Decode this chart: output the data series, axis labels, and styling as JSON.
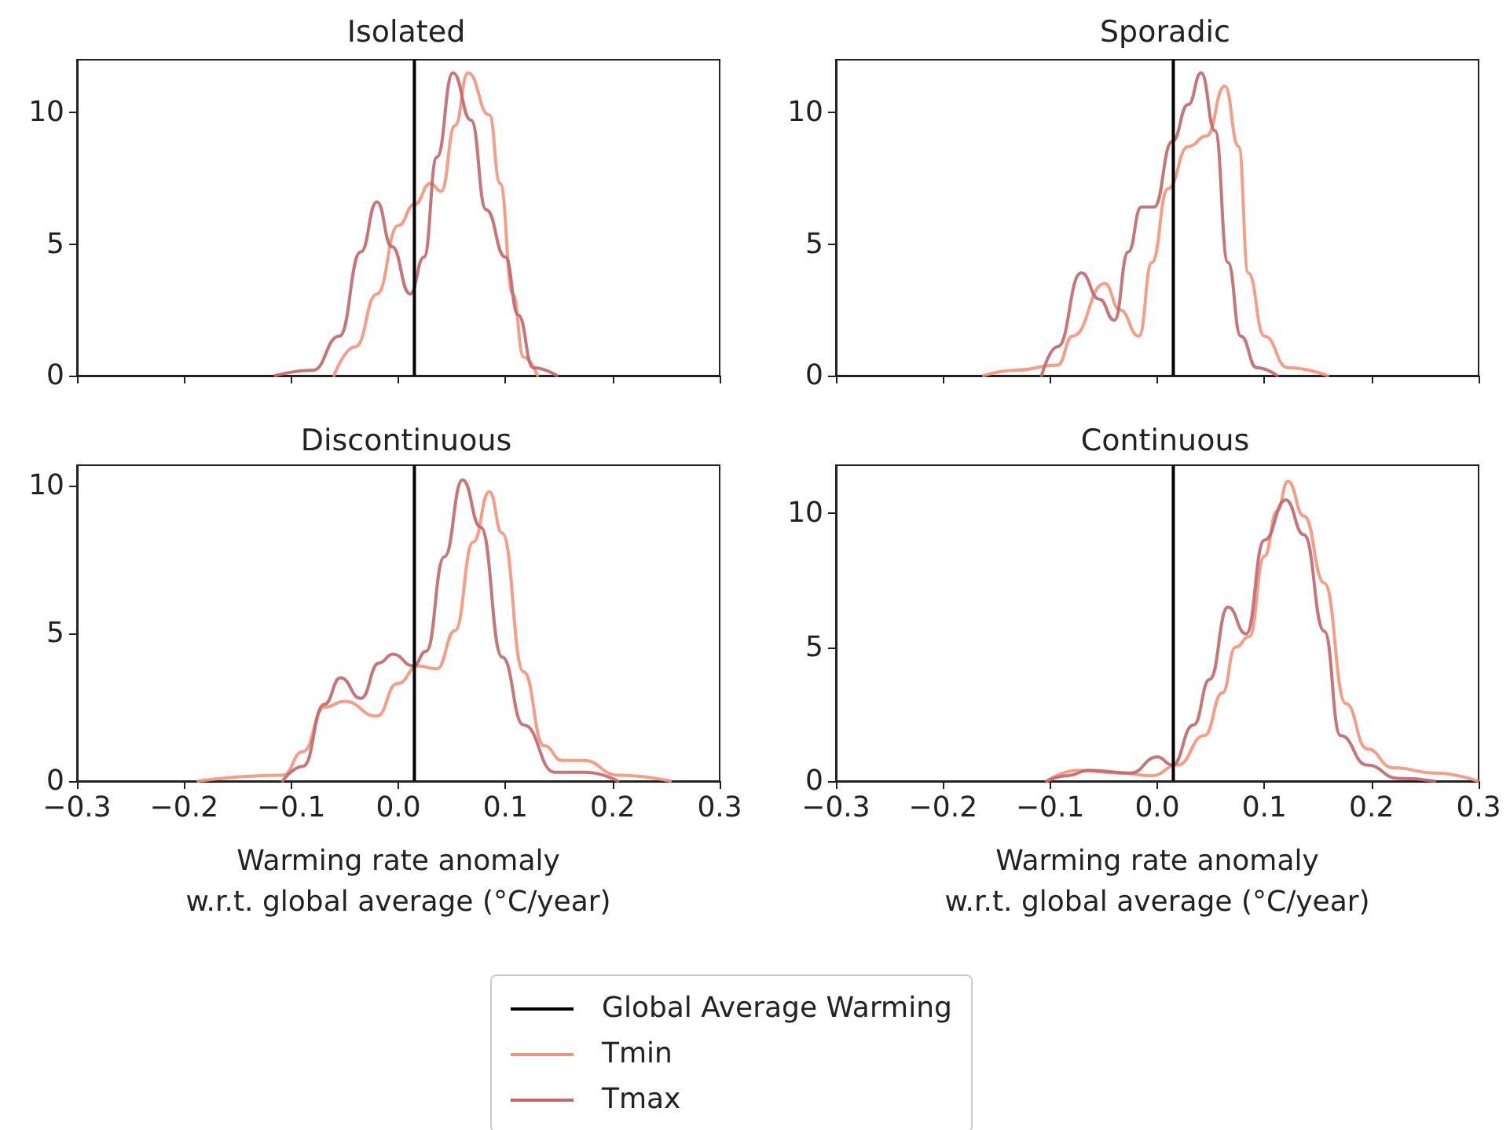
{
  "chart_data": [
    {
      "type": "line",
      "title": "Isolated",
      "xlim": [
        -0.3,
        0.3
      ],
      "ylim": [
        0,
        12
      ],
      "xticks": [
        -0.3,
        -0.2,
        -0.1,
        0,
        0.1,
        0.2,
        0.3
      ],
      "yticks": [
        0,
        5,
        10
      ],
      "tick_labels": "y",
      "grid": false,
      "legend": "bottom",
      "ref_lines": [
        {
          "axis": "x",
          "value": 0.015,
          "label": "Global Average Warming",
          "color": "#000000"
        }
      ],
      "series": [
        {
          "name": "Tmin",
          "color": "#f4937a",
          "x": [
            -0.06,
            -0.04,
            -0.02,
            0,
            0.015,
            0.03,
            0.04,
            0.053,
            0.065,
            0.085,
            0.095,
            0.107,
            0.117,
            0.13
          ],
          "values": [
            0,
            1.1,
            3.1,
            5.7,
            6.5,
            7.3,
            7.0,
            9.5,
            11.5,
            9.9,
            7.3,
            3.1,
            0.7,
            0
          ]
        },
        {
          "name": "Tmax",
          "color": "#c0676b",
          "x": [
            -0.115,
            -0.08,
            -0.055,
            -0.035,
            -0.02,
            -0.006,
            0.011,
            0.024,
            0.036,
            0.051,
            0.068,
            0.082,
            0.1,
            0.112,
            0.126,
            0.148
          ],
          "values": [
            0,
            0.2,
            1.5,
            4.7,
            6.6,
            4.9,
            3.1,
            4.5,
            8.3,
            11.5,
            9.7,
            6.3,
            4.5,
            2.3,
            0.3,
            0
          ]
        }
      ]
    },
    {
      "type": "line",
      "title": "Sporadic",
      "xlim": [
        -0.3,
        0.3
      ],
      "ylim": [
        0,
        12
      ],
      "xticks": [
        -0.3,
        -0.2,
        -0.1,
        0,
        0.1,
        0.2,
        0.3
      ],
      "yticks": [
        0,
        5,
        10
      ],
      "tick_labels": "y",
      "grid": false,
      "ref_lines": [
        {
          "axis": "x",
          "value": 0.015,
          "color": "#000000"
        }
      ],
      "series": [
        {
          "color": "#f4937a",
          "x": [
            -0.162,
            -0.133,
            -0.093,
            -0.079,
            -0.049,
            -0.035,
            -0.017,
            -0.005,
            0.01,
            0.029,
            0.046,
            0.063,
            0.076,
            0.085,
            0.1,
            0.122,
            0.159
          ],
          "values": [
            0,
            0.2,
            0.4,
            1.5,
            3.5,
            2.5,
            1.5,
            4.3,
            7.1,
            8.7,
            9.1,
            11.0,
            8.7,
            3.9,
            1.5,
            0.3,
            0
          ]
        },
        {
          "color": "#c0676b",
          "x": [
            -0.108,
            -0.093,
            -0.071,
            -0.054,
            -0.04,
            -0.027,
            -0.015,
            -0.003,
            0.014,
            0.029,
            0.041,
            0.054,
            0.066,
            0.078,
            0.093,
            0.112
          ],
          "values": [
            0,
            1.1,
            3.9,
            2.9,
            2.1,
            4.7,
            6.4,
            6.4,
            8.9,
            10.3,
            11.5,
            9.3,
            4.3,
            1.5,
            0.3,
            0
          ]
        }
      ]
    },
    {
      "type": "line",
      "title": "Discontinuous",
      "xlabel": "Warming rate anomaly\nw.r.t. global average (°C/year)",
      "xlim": [
        -0.3,
        0.3
      ],
      "ylim": [
        0,
        10.7
      ],
      "xticks": [
        {
          "value": -0.3,
          "label": "−0.3"
        },
        {
          "value": -0.2,
          "label": "−0.2"
        },
        {
          "value": -0.1,
          "label": "−0.1"
        },
        {
          "value": 0,
          "label": "0.0"
        },
        {
          "value": 0.1,
          "label": "0.1"
        },
        {
          "value": 0.2,
          "label": "0.2"
        },
        {
          "value": 0.3,
          "label": "0.3"
        }
      ],
      "yticks": [
        0,
        5,
        10
      ],
      "grid": false,
      "ref_lines": [
        {
          "axis": "x",
          "value": 0.015,
          "color": "#000000"
        }
      ],
      "series": [
        {
          "color": "#f4937a",
          "x": [
            -0.187,
            -0.108,
            -0.089,
            -0.069,
            -0.05,
            -0.02,
            -0.001,
            0.019,
            0.036,
            0.053,
            0.07,
            0.085,
            0.097,
            0.117,
            0.136,
            0.153,
            0.173,
            0.205,
            0.254
          ],
          "values": [
            0,
            0.2,
            1.0,
            2.5,
            2.7,
            2.2,
            3.3,
            3.9,
            3.8,
            5.1,
            8.1,
            9.8,
            8.4,
            3.7,
            1.2,
            0.7,
            0.7,
            0.2,
            0
          ]
        },
        {
          "color": "#c0676b",
          "x": [
            -0.108,
            -0.089,
            -0.069,
            -0.054,
            -0.035,
            -0.018,
            -0.005,
            0.014,
            0.026,
            0.043,
            0.06,
            0.077,
            0.097,
            0.117,
            0.146,
            0.175,
            0.205
          ],
          "values": [
            0,
            0.5,
            2.6,
            3.5,
            2.8,
            4.0,
            4.3,
            3.9,
            4.4,
            7.6,
            10.2,
            8.6,
            4.2,
            1.9,
            0.3,
            0.3,
            0
          ]
        }
      ]
    },
    {
      "type": "line",
      "title": "Continuous",
      "xlabel": "Warming rate anomaly\nw.r.t. global average (°C/year)",
      "xlim": [
        -0.3,
        0.3
      ],
      "ylim": [
        0,
        11.8
      ],
      "xticks": [
        {
          "value": -0.3,
          "label": "−0.3"
        },
        {
          "value": -0.2,
          "label": "−0.2"
        },
        {
          "value": -0.1,
          "label": "−0.1"
        },
        {
          "value": 0,
          "label": "0.0"
        },
        {
          "value": 0.1,
          "label": "0.1"
        },
        {
          "value": 0.2,
          "label": "0.2"
        },
        {
          "value": 0.3,
          "label": "0.3"
        }
      ],
      "yticks": [
        0,
        5,
        10
      ],
      "grid": false,
      "ref_lines": [
        {
          "axis": "x",
          "value": 0.015,
          "color": "#000000"
        }
      ],
      "series": [
        {
          "color": "#f4937a",
          "x": [
            -0.103,
            -0.074,
            -0.035,
            -0.005,
            0.019,
            0.044,
            0.061,
            0.073,
            0.086,
            0.1,
            0.112,
            0.122,
            0.137,
            0.156,
            0.176,
            0.196,
            0.22,
            0.259,
            0.299
          ],
          "values": [
            0,
            0.4,
            0.3,
            0.2,
            0.6,
            1.7,
            3.3,
            5.0,
            5.4,
            8.4,
            10.1,
            11.2,
            9.9,
            7.4,
            2.9,
            1.2,
            0.5,
            0.3,
            0
          ]
        },
        {
          "color": "#c0676b",
          "x": [
            -0.103,
            -0.084,
            -0.064,
            -0.025,
            0,
            0.014,
            0.034,
            0.049,
            0.066,
            0.083,
            0.1,
            0.12,
            0.137,
            0.156,
            0.171,
            0.196,
            0.225,
            0.259
          ],
          "values": [
            0,
            0.2,
            0.4,
            0.3,
            0.9,
            0.6,
            2.1,
            3.8,
            6.5,
            5.5,
            9.0,
            10.5,
            9.2,
            5.6,
            1.7,
            0.6,
            0.1,
            0
          ]
        }
      ]
    }
  ]
}
